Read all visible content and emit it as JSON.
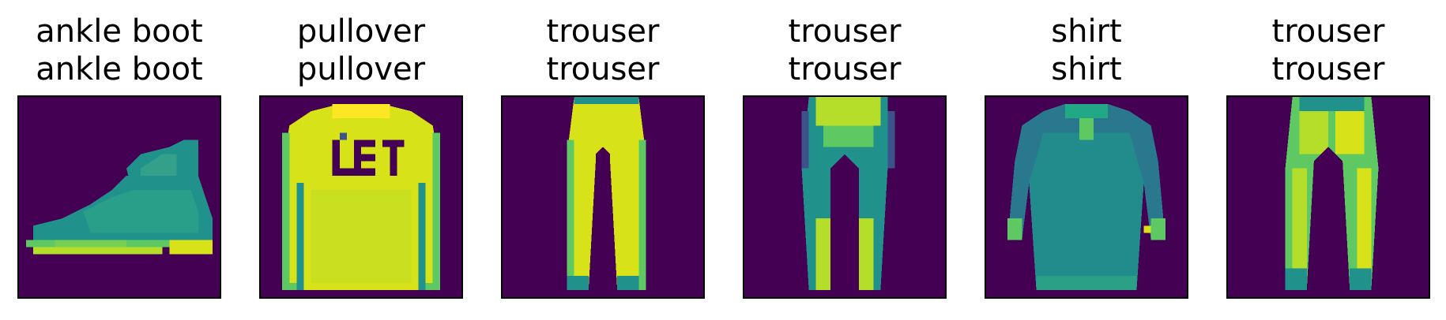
{
  "background_color": "#440154",
  "colors": {
    "dark": "#440154",
    "teal": "#21918c",
    "green": "#5ec962",
    "yellow": "#d8e219",
    "bright": "#fde725",
    "blue": "#3b528b"
  },
  "panels": [
    {
      "true_label": "ankle boot",
      "pred_label": "ankle boot",
      "image": "ankle-boot"
    },
    {
      "true_label": "pullover",
      "pred_label": "pullover",
      "image": "pullover"
    },
    {
      "true_label": "trouser",
      "pred_label": "trouser",
      "image": "trouser"
    },
    {
      "true_label": "trouser",
      "pred_label": "trouser",
      "image": "trouser"
    },
    {
      "true_label": "shirt",
      "pred_label": "shirt",
      "image": "shirt"
    },
    {
      "true_label": "trouser",
      "pred_label": "trouser",
      "image": "trouser"
    }
  ]
}
